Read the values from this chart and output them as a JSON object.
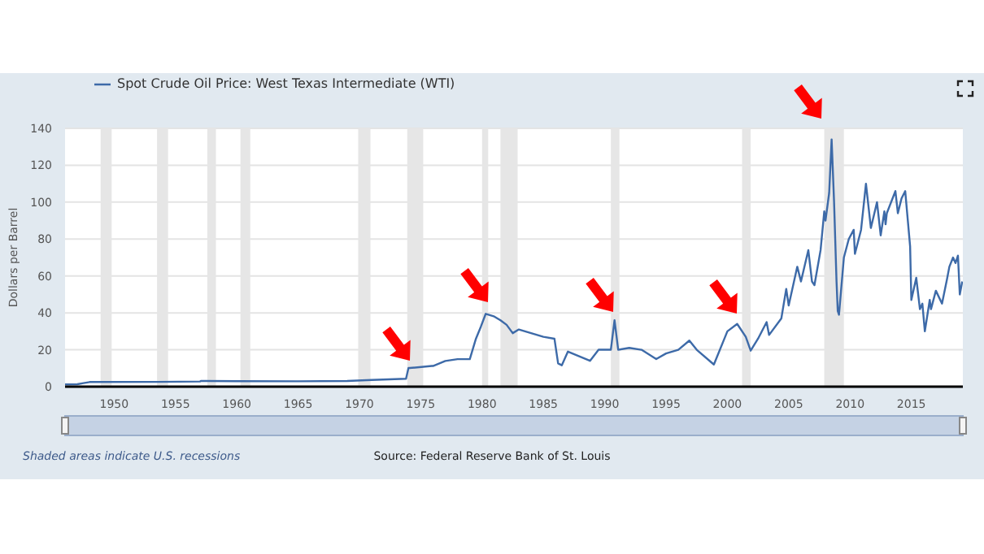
{
  "chart_data": {
    "type": "line",
    "ylabel": "Dollars per Barrel",
    "annotations": [
      "Shaded areas indicate U.S. recessions",
      "Source: Federal Reserve Bank of St. Louis"
    ],
    "xlim": [
      1946,
      2019.2
    ],
    "xticks": [
      1950,
      1955,
      1960,
      1965,
      1970,
      1975,
      1980,
      1985,
      1990,
      1995,
      2000,
      2005,
      2010,
      2015
    ],
    "ylim": [
      0,
      140
    ],
    "yticks": [
      0,
      20,
      40,
      60,
      80,
      100,
      120,
      140
    ],
    "grid": "y",
    "legend": "top left",
    "bands": [
      {
        "axis": "x",
        "from": 1948.9,
        "to": 1949.8,
        "color": "#e6e6e6"
      },
      {
        "axis": "x",
        "from": 1953.5,
        "to": 1954.4,
        "color": "#e6e6e6"
      },
      {
        "axis": "x",
        "from": 1957.6,
        "to": 1958.3,
        "color": "#e6e6e6"
      },
      {
        "axis": "x",
        "from": 1960.3,
        "to": 1961.1,
        "color": "#e6e6e6"
      },
      {
        "axis": "x",
        "from": 1969.9,
        "to": 1970.9,
        "color": "#e6e6e6"
      },
      {
        "axis": "x",
        "from": 1973.9,
        "to": 1975.2,
        "color": "#e6e6e6"
      },
      {
        "axis": "x",
        "from": 1980.0,
        "to": 1980.5,
        "color": "#e6e6e6"
      },
      {
        "axis": "x",
        "from": 1981.5,
        "to": 1982.9,
        "color": "#e6e6e6"
      },
      {
        "axis": "x",
        "from": 1990.5,
        "to": 1991.2,
        "color": "#e6e6e6"
      },
      {
        "axis": "x",
        "from": 2001.2,
        "to": 2001.9,
        "color": "#e6e6e6"
      },
      {
        "axis": "x",
        "from": 2007.9,
        "to": 2009.5,
        "color": "#e6e6e6"
      }
    ],
    "series": [
      {
        "name": "Spot Crude Oil Price: West Texas Intermediate (WTI)",
        "color": "#3d6aa8",
        "x": [
          1946,
          1947,
          1947.5,
          1948,
          1953.5,
          1957,
          1957.1,
          1960,
          1965,
          1969,
          1971,
          1973.8,
          1974,
          1974.1,
          1975.9,
          1976,
          1977,
          1978,
          1979,
          1979.5,
          1979.9,
          1980.3,
          1981,
          1981.5,
          1982,
          1982.5,
          1983,
          1984,
          1985,
          1985.9,
          1986.2,
          1986.5,
          1987,
          1988.8,
          1989.5,
          1990.5,
          1990.8,
          1991.1,
          1992,
          1993,
          1994.2,
          1995,
          1996,
          1996.9,
          1997.5,
          1998.9,
          2000,
          2000.8,
          2001.5,
          2001.9,
          2002.5,
          2003.2,
          2003.4,
          2004.4,
          2004.8,
          2005,
          2005.7,
          2006,
          2006.6,
          2006.9,
          2007.1,
          2007.6,
          2007.9,
          2008,
          2008.3,
          2008.5,
          2008.7,
          2008.9,
          2009,
          2009.1,
          2009.5,
          2009.9,
          2010.3,
          2010.4,
          2010.9,
          2011.3,
          2011.7,
          2012.2,
          2012.5,
          2012.8,
          2012.9,
          2013,
          2013.7,
          2013.9,
          2014.2,
          2014.5,
          2014.9,
          2015,
          2015.4,
          2015.7,
          2015.9,
          2016.1,
          2016.5,
          2016.6,
          2017,
          2017.5,
          2017.9,
          2018.1,
          2018.4,
          2018.6,
          2018.8,
          2018.95,
          2019.15
        ],
        "values": [
          1.2,
          1.3,
          1.9,
          2.5,
          2.6,
          2.8,
          3.1,
          3,
          2.9,
          3.1,
          3.6,
          4.3,
          10.1,
          10.1,
          11.2,
          11.2,
          13.9,
          14.9,
          14.9,
          26,
          32.5,
          39.5,
          38,
          36,
          33.5,
          29,
          31,
          29,
          27,
          26,
          12.6,
          11.6,
          19,
          14,
          20,
          20,
          36,
          20,
          21,
          20,
          15,
          18,
          20,
          25,
          20,
          12,
          30,
          34,
          27,
          19.5,
          26,
          35,
          28,
          37,
          53,
          44,
          65,
          57,
          74,
          57,
          55,
          74,
          95,
          90,
          105,
          134,
          100,
          57,
          41,
          39,
          70,
          80,
          85,
          72,
          85,
          110,
          86,
          100,
          82,
          95,
          88,
          94,
          106,
          94,
          102,
          106,
          76,
          47,
          59,
          42,
          45,
          30,
          47,
          42,
          52,
          45,
          58,
          65,
          70,
          67,
          71,
          50,
          57
        ]
      }
    ]
  }
}
